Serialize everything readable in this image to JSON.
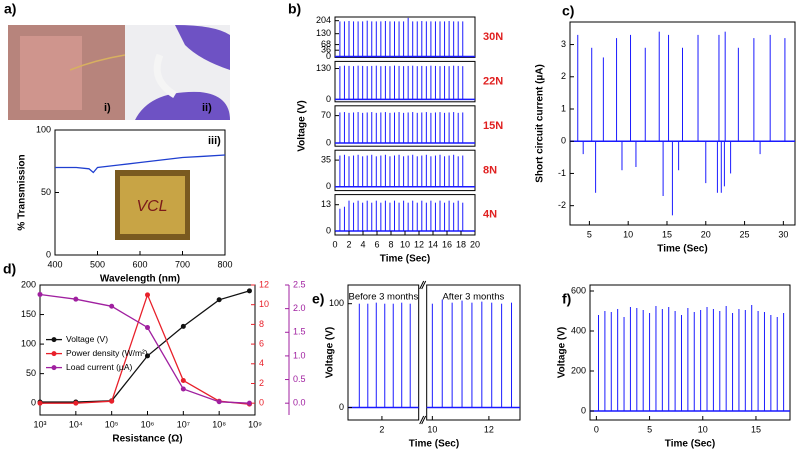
{
  "photos": {
    "panel_label": "a)",
    "labels": [
      "i)",
      "ii)",
      "iii)"
    ],
    "inset_text": "VCL"
  },
  "chart_data": [
    {
      "type": "line",
      "xlabel": "Wavelength (nm)",
      "ylabel": "% Transmission",
      "color": "#1f3fd0",
      "x": [
        400,
        450,
        480,
        490,
        500,
        550,
        600,
        650,
        700,
        750,
        800
      ],
      "values": [
        70,
        70,
        69,
        66,
        70,
        72,
        74,
        76,
        78,
        79,
        80
      ],
      "xlim": [
        400,
        800
      ],
      "xticks": [
        400,
        500,
        600,
        700,
        800
      ],
      "ylim": [
        0,
        100
      ],
      "yticks": [
        0,
        50,
        100
      ]
    },
    {
      "type": "spikes",
      "panel_label": "b)",
      "xlabel": "Time (Sec)",
      "ylabel": "Voltage (V)",
      "color": "#1a1aff",
      "label_color": "#e02020",
      "x": [
        0.7,
        1.35,
        2,
        2.65,
        3.3,
        3.95,
        4.6,
        5.25,
        5.9,
        6.55,
        7.2,
        7.85,
        8.5,
        9.15,
        9.8,
        10.45,
        11.1,
        11.75,
        12.4,
        13.05,
        13.7,
        14.35,
        15,
        15.65,
        16.3,
        16.95,
        17.6,
        18.25
      ],
      "xlim": [
        0,
        20
      ],
      "xticks": [
        0,
        2,
        4,
        6,
        8,
        10,
        12,
        14,
        16,
        18,
        20
      ],
      "series": [
        {
          "name": "30N",
          "ylim": [
            -5,
            225
          ],
          "yticks": [
            0,
            36,
            68,
            130,
            204
          ],
          "values": [
            200,
            200,
            202,
            200,
            200,
            200,
            204,
            200,
            200,
            200,
            202,
            200,
            200,
            200,
            200,
            220,
            200,
            200,
            202,
            200,
            200,
            200,
            200,
            200,
            202,
            200,
            200,
            200
          ]
        },
        {
          "name": "22N",
          "ylim": [
            -10,
            160
          ],
          "yticks": [
            0,
            130
          ],
          "values": [
            140,
            142,
            141,
            140,
            142,
            141,
            140,
            141,
            142,
            140,
            141,
            140,
            142,
            141,
            140,
            141,
            142,
            140,
            141,
            140,
            142,
            141,
            140,
            141,
            140,
            142,
            141,
            140
          ]
        },
        {
          "name": "15N",
          "ylim": [
            -8,
            95
          ],
          "yticks": [
            0,
            70
          ],
          "values": [
            78,
            79,
            77,
            78,
            79,
            77,
            78,
            79,
            77,
            78,
            79,
            77,
            78,
            79,
            77,
            78,
            79,
            77,
            78,
            79,
            77,
            78,
            79,
            77,
            78,
            79,
            77,
            78
          ]
        },
        {
          "name": "8N",
          "ylim": [
            -5,
            48
          ],
          "yticks": [
            0,
            35
          ],
          "values": [
            41,
            42,
            40,
            41,
            42,
            40,
            41,
            42,
            40,
            41,
            42,
            40,
            41,
            42,
            40,
            41,
            42,
            40,
            41,
            42,
            40,
            41,
            42,
            40,
            41,
            42,
            40,
            41
          ]
        },
        {
          "name": "4N",
          "ylim": [
            -2,
            18
          ],
          "yticks": [
            0,
            13
          ],
          "values": [
            11,
            12,
            15,
            14,
            15,
            14,
            15,
            14,
            15,
            14,
            15,
            14,
            15,
            14,
            15,
            14,
            15,
            14,
            15,
            14,
            15,
            14,
            15,
            14,
            15,
            14,
            15,
            14
          ]
        }
      ]
    },
    {
      "type": "spikes",
      "panel_label": "c)",
      "xlabel": "Time (Sec)",
      "ylabel": "Short circuit current (µA)",
      "color": "#1a1aff",
      "x": [
        3.5,
        4.2,
        5.3,
        5.8,
        6.8,
        8.5,
        9.2,
        10.3,
        11.0,
        12.2,
        14.0,
        14.5,
        15.2,
        15.7,
        16.5,
        17.0,
        19.0,
        20.0,
        21.5,
        21.7,
        22.0,
        22.4,
        22.5,
        23.2,
        24.2,
        26.2,
        27.0,
        28.3,
        30.2
      ],
      "values": [
        3.3,
        -0.4,
        2.9,
        -1.6,
        2.6,
        3.2,
        -0.9,
        3.3,
        -0.8,
        2.9,
        3.4,
        -1.7,
        3.3,
        -2.3,
        -0.9,
        2.9,
        3.3,
        -1.3,
        -1.6,
        3.3,
        -1.6,
        -1.4,
        3.4,
        -1.0,
        2.9,
        3.2,
        -0.4,
        3.3,
        3.2
      ],
      "xlim": [
        2.5,
        31.5
      ],
      "xticks": [
        5,
        10,
        15,
        20,
        25,
        30
      ],
      "ylim": [
        -2.6,
        3.7
      ],
      "yticks": [
        -2,
        -1,
        0,
        1,
        2,
        3
      ]
    },
    {
      "type": "line",
      "panel_label": "d)",
      "xlabel": "Resistance (Ω)",
      "log_x": true,
      "markers": true,
      "legend": "center left",
      "x": [
        1000,
        10000,
        100000,
        1000000,
        10000000,
        100000000,
        700000000
      ],
      "xlim": [
        1000,
        1000000000
      ],
      "xticks": [
        {
          "value": 1000,
          "label": "10³"
        },
        {
          "value": 10000,
          "label": "10⁴"
        },
        {
          "value": 100000,
          "label": "10⁵"
        },
        {
          "value": 1000000,
          "label": "10⁶"
        },
        {
          "value": 10000000,
          "label": "10⁷"
        },
        {
          "value": 100000000,
          "label": "10⁸"
        },
        {
          "value": 1000000000,
          "label": "10⁹"
        }
      ],
      "ylim": [
        -20,
        200
      ],
      "yticks": [
        0,
        50,
        100,
        150,
        200
      ],
      "y2lim": [
        -1.2,
        12
      ],
      "y2ticks": [
        0,
        2,
        4,
        6,
        8,
        10,
        12
      ],
      "y3lim": [
        -0.25,
        2.5
      ],
      "y3ticks": [
        {
          "value": 0,
          "label": "0.0"
        },
        0.5,
        {
          "value": 1,
          "label": "1.0"
        },
        1.5,
        {
          "value": 2,
          "label": "2.0"
        },
        2.5
      ],
      "series": [
        {
          "name": "Voltage (V)",
          "color": "#111111",
          "axis": "y",
          "values": [
            2,
            2,
            4,
            80,
            130,
            175,
            190
          ]
        },
        {
          "name": "Power density (W/m²)",
          "color": "#e8202a",
          "axis": "y2",
          "values": [
            0,
            0,
            0.2,
            11,
            2.3,
            0.2,
            -0.1
          ]
        },
        {
          "name": "Load current (µA)",
          "color": "#a020a0",
          "axis": "y3",
          "values": [
            2.3,
            2.2,
            2.05,
            1.6,
            0.3,
            0.03,
            0
          ]
        }
      ]
    },
    {
      "type": "spikes",
      "panel_label": "e)",
      "xlabel": "Time (Sec)",
      "ylabel": "Voltage (V)",
      "color": "#1a1aff",
      "ylim": [
        -12,
        118
      ],
      "yticks": [
        0,
        100
      ],
      "segments": [
        {
          "label": "Before 3 months",
          "xlim": [
            0.8,
            3.3
          ],
          "xticks": [
            2
          ],
          "x": [
            1.2,
            1.5,
            1.8,
            2.1,
            2.4,
            2.7,
            3.0
          ],
          "values": [
            100,
            100,
            101,
            100,
            100,
            101,
            100
          ]
        },
        {
          "label": "After 3 months",
          "xlim": [
            9.8,
            13.1
          ],
          "xticks": [
            10,
            12
          ],
          "x": [
            10.0,
            10.35,
            10.7,
            11.05,
            11.4,
            11.75,
            12.1,
            12.45,
            12.8
          ],
          "values": [
            100,
            104,
            101,
            103,
            101,
            102,
            101,
            100,
            101
          ]
        }
      ]
    },
    {
      "type": "spikes",
      "panel_label": "f)",
      "xlabel": "Time (Sec)",
      "ylabel": "Voltage (V)",
      "color": "#1a1aff",
      "x": [
        0.2,
        0.8,
        1.4,
        2,
        2.6,
        3.2,
        3.8,
        4.4,
        5,
        5.6,
        6.2,
        6.8,
        7.4,
        8,
        8.6,
        9.2,
        9.8,
        10.4,
        11,
        11.6,
        12.2,
        12.8,
        13.4,
        14,
        14.6,
        15.2,
        15.8,
        16.4,
        17,
        17.6
      ],
      "values": [
        480,
        500,
        495,
        510,
        470,
        520,
        515,
        505,
        490,
        525,
        510,
        520,
        500,
        480,
        515,
        495,
        505,
        520,
        510,
        500,
        525,
        490,
        510,
        505,
        530,
        500,
        495,
        480,
        470,
        490
      ],
      "xlim": [
        -0.6,
        18.2
      ],
      "xticks": [
        0,
        5,
        10,
        15
      ],
      "ylim": [
        -45,
        630
      ],
      "yticks": [
        0,
        200,
        400,
        600
      ]
    }
  ]
}
